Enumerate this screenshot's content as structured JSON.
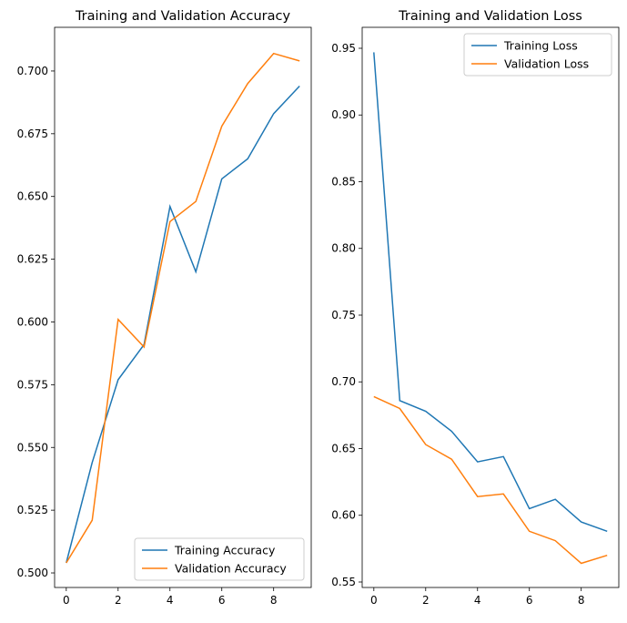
{
  "chart_data": [
    {
      "type": "line",
      "title": "Training and Validation Accuracy",
      "x": [
        0,
        1,
        2,
        3,
        4,
        5,
        6,
        7,
        8,
        9
      ],
      "xlim": [
        -0.45,
        9.45
      ],
      "ylim": [
        0.4942,
        0.7174
      ],
      "xticks": [
        0,
        2,
        4,
        6,
        8
      ],
      "yticks": [
        0.5,
        0.525,
        0.55,
        0.575,
        0.6,
        0.625,
        0.65,
        0.675,
        0.7
      ],
      "ytick_labels": [
        "0.500",
        "0.525",
        "0.550",
        "0.575",
        "0.600",
        "0.625",
        "0.650",
        "0.675",
        "0.700"
      ],
      "legend": "lower-right",
      "grid": false,
      "series": [
        {
          "name": "Training Accuracy",
          "color": "#1f77b4",
          "values": [
            0.504,
            0.544,
            0.577,
            0.591,
            0.646,
            0.62,
            0.657,
            0.665,
            0.683,
            0.694
          ]
        },
        {
          "name": "Validation Accuracy",
          "color": "#ff7f0e",
          "values": [
            0.504,
            0.521,
            0.601,
            0.59,
            0.64,
            0.648,
            0.678,
            0.695,
            0.707,
            0.704
          ]
        }
      ]
    },
    {
      "type": "line",
      "title": "Training and Validation Loss",
      "x": [
        0,
        1,
        2,
        3,
        4,
        5,
        6,
        7,
        8,
        9
      ],
      "xlim": [
        -0.45,
        9.45
      ],
      "ylim": [
        0.5459,
        0.9657
      ],
      "xticks": [
        0,
        2,
        4,
        6,
        8
      ],
      "yticks": [
        0.55,
        0.6,
        0.65,
        0.7,
        0.75,
        0.8,
        0.85,
        0.9,
        0.95
      ],
      "ytick_labels": [
        "0.55",
        "0.60",
        "0.65",
        "0.70",
        "0.75",
        "0.80",
        "0.85",
        "0.90",
        "0.95"
      ],
      "legend": "upper-right",
      "grid": false,
      "series": [
        {
          "name": "Training Loss",
          "color": "#1f77b4",
          "values": [
            0.947,
            0.686,
            0.678,
            0.663,
            0.64,
            0.644,
            0.605,
            0.612,
            0.595,
            0.588
          ]
        },
        {
          "name": "Validation Loss",
          "color": "#ff7f0e",
          "values": [
            0.689,
            0.68,
            0.653,
            0.642,
            0.614,
            0.616,
            0.588,
            0.581,
            0.564,
            0.57
          ]
        }
      ]
    }
  ]
}
